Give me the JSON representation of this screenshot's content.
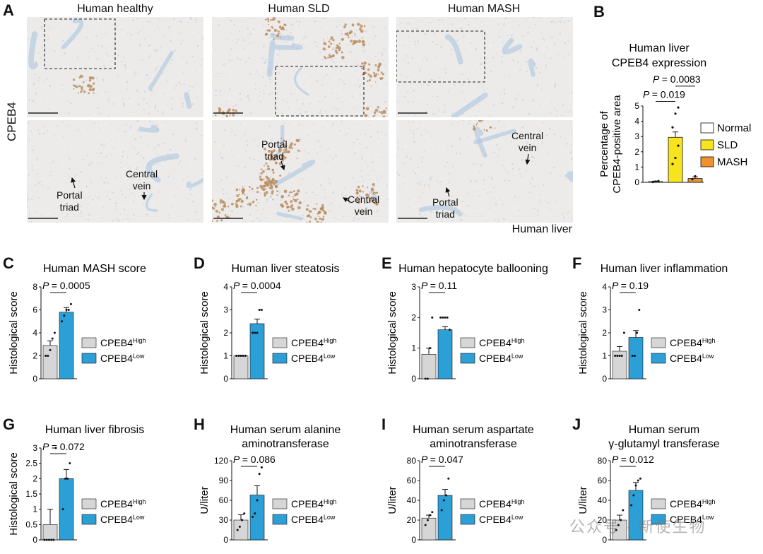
{
  "panelA": {
    "label": "A",
    "columns": [
      "Human healthy",
      "Human SLD",
      "Human MASH"
    ],
    "side_label": "CPEB4",
    "bottom_label": "Human liver",
    "annotations": {
      "healthy_portal": "Portal\ntriad",
      "healthy_central": "Central\nvein",
      "sld_portal": "Portal\ntriad",
      "sld_central": "Central\nvein",
      "mash_central": "Central\nvein",
      "mash_portal": "Portal\ntriad"
    }
  },
  "panelB": {
    "label": "B",
    "title_line1": "Human liver",
    "title_line2": "CPEB4 expression",
    "ylabel_line1": "Percentage of",
    "ylabel_line2": "CPEB4-positive area",
    "p_top": "= 0.0083",
    "p_bottom": "= 0.019",
    "legend": [
      "Normal",
      "SLD",
      "MASH"
    ],
    "chart_data": {
      "type": "bar",
      "categories": [
        "Normal",
        "SLD",
        "MASH"
      ],
      "values": [
        0.05,
        2.95,
        0.25
      ],
      "errors": [
        0.03,
        0.35,
        0.1
      ],
      "points": [
        [
          0.02,
          0.05,
          0.08
        ],
        [
          1.2,
          1.6,
          2.4,
          3.6,
          4.5,
          4.9
        ],
        [
          0.2,
          0.4
        ]
      ],
      "ylim": [
        0,
        5
      ],
      "yticks": [
        0,
        1,
        2,
        3,
        4,
        5
      ],
      "colors": [
        "#ffffff",
        "#f7e41e",
        "#f0922c"
      ]
    }
  },
  "bar_panels": [
    {
      "label": "C",
      "title_lines": [
        "Human MASH score"
      ],
      "ylabel": "Histological score",
      "p": "= 0.0005",
      "chart_data": {
        "type": "bar",
        "categories": [
          "CPEB4High",
          "CPEB4Low"
        ],
        "values": [
          2.9,
          5.8
        ],
        "errors": [
          0.4,
          0.4
        ],
        "ylim": [
          0,
          8
        ],
        "yticks": [
          0,
          2,
          4,
          6,
          8
        ],
        "points": [
          [
            2,
            2,
            2.5,
            3.5,
            4
          ],
          [
            5,
            5.5,
            6,
            6,
            6.5
          ]
        ]
      }
    },
    {
      "label": "D",
      "title_lines": [
        "Human liver steatosis"
      ],
      "ylabel": "Histological score",
      "p": "= 0.0004",
      "chart_data": {
        "type": "bar",
        "categories": [
          "CPEB4High",
          "CPEB4Low"
        ],
        "values": [
          1.0,
          2.4
        ],
        "errors": [
          0.02,
          0.2
        ],
        "ylim": [
          0,
          4
        ],
        "yticks": [
          0,
          1,
          2,
          3,
          4
        ],
        "points": [
          [
            1,
            1,
            1,
            1,
            1
          ],
          [
            2,
            2,
            2,
            3,
            3
          ]
        ]
      }
    },
    {
      "label": "E",
      "title_lines": [
        "Human hepatocyte ballooning"
      ],
      "ylabel": "Histological score",
      "p": "= 0.11",
      "chart_data": {
        "type": "bar",
        "categories": [
          "CPEB4High",
          "CPEB4Low"
        ],
        "values": [
          0.8,
          1.6
        ],
        "errors": [
          0.2,
          0.1
        ],
        "ylim": [
          0,
          3
        ],
        "yticks": [
          0,
          1,
          2,
          3
        ],
        "points": [
          [
            0,
            0,
            1,
            2
          ],
          [
            2,
            2,
            2,
            2,
            1.6
          ]
        ]
      }
    },
    {
      "label": "F",
      "title_lines": [
        "Human liver inflammation"
      ],
      "ylabel": "Histological score",
      "p": "= 0.19",
      "chart_data": {
        "type": "bar",
        "categories": [
          "CPEB4High",
          "CPEB4Low"
        ],
        "values": [
          1.2,
          1.8
        ],
        "errors": [
          0.2,
          0.3
        ],
        "ylim": [
          0,
          4
        ],
        "yticks": [
          0,
          1,
          2,
          3,
          4
        ],
        "points": [
          [
            1,
            1,
            1,
            1,
            2
          ],
          [
            1,
            1,
            2,
            3
          ]
        ]
      }
    },
    {
      "label": "G",
      "title_lines": [
        "Human liver fibrosis"
      ],
      "ylabel": "Histological score",
      "p": "= 0.072",
      "chart_data": {
        "type": "bar",
        "categories": [
          "CPEB4High",
          "CPEB4Low"
        ],
        "values": [
          0.5,
          2.0
        ],
        "errors": [
          0.5,
          0.3
        ],
        "ylim": [
          0,
          3
        ],
        "yticks": [
          0,
          0.5,
          1,
          1.5,
          2,
          2.5,
          3
        ],
        "points": [
          [
            0,
            0,
            0,
            0,
            0,
            3
          ],
          [
            1,
            2,
            2,
            2.5
          ]
        ]
      }
    },
    {
      "label": "H",
      "title_lines": [
        "Human serum alanine",
        "aminotransferase"
      ],
      "ylabel": "U/liter",
      "p": "= 0.086",
      "chart_data": {
        "type": "bar",
        "categories": [
          "CPEB4High",
          "CPEB4Low"
        ],
        "values": [
          30,
          68
        ],
        "errors": [
          8,
          14
        ],
        "ylim": [
          0,
          120
        ],
        "yticks": [
          0,
          30,
          60,
          90,
          120
        ],
        "points": [
          [
            15,
            20,
            30,
            40
          ],
          [
            35,
            40,
            60,
            100,
            110
          ]
        ]
      }
    },
    {
      "label": "I",
      "title_lines": [
        "Human serum aspartate",
        "aminotransferase"
      ],
      "ylabel": "U/liter",
      "p": "= 0.047",
      "chart_data": {
        "type": "bar",
        "categories": [
          "CPEB4High",
          "CPEB4Low"
        ],
        "values": [
          22,
          45
        ],
        "errors": [
          3,
          6
        ],
        "ylim": [
          0,
          80
        ],
        "yticks": [
          0,
          20,
          40,
          60,
          80
        ],
        "points": [
          [
            15,
            20,
            25,
            28
          ],
          [
            30,
            40,
            45,
            62
          ]
        ]
      }
    },
    {
      "label": "J",
      "title_lines": [
        "Human serum",
        "γ-glutamyl transferase"
      ],
      "ylabel": "U/liter",
      "p": "= 0.012",
      "chart_data": {
        "type": "bar",
        "categories": [
          "CPEB4High",
          "CPEB4Low"
        ],
        "values": [
          20,
          50
        ],
        "errors": [
          5,
          8
        ],
        "ylim": [
          0,
          80
        ],
        "yticks": [
          0,
          20,
          40,
          60,
          80
        ],
        "points": [
          [
            10,
            15,
            20,
            30
          ],
          [
            35,
            45,
            55,
            60,
            62
          ]
        ]
      }
    }
  ],
  "legend_group": {
    "high_base": "CPEB4",
    "high_sup": "High",
    "low_base": "CPEB4",
    "low_sup": "Low"
  },
  "colors": {
    "high": "#d6d6d6",
    "low": "#2b9fd6",
    "tissue_bg": "#ecebea",
    "stain": "#b98a5a",
    "hematoxylin": "#a7c2de"
  },
  "watermark": "公众号 · 新使生物"
}
